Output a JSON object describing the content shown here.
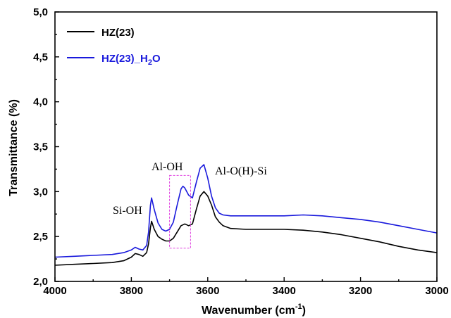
{
  "chart_data": {
    "type": "line",
    "title": "",
    "xlabel": "Wavenumber (cm",
    "xlabel_sup": "-1",
    "xlabel_end": ")",
    "ylabel": "Transmittance (%)",
    "xlim": [
      4000,
      3000
    ],
    "ylim": [
      2.0,
      5.0
    ],
    "x_inverted": true,
    "grid": false,
    "legend_position": "top-left",
    "x_ticks": [
      {
        "value": 4000,
        "label": "4000"
      },
      {
        "value": 3800,
        "label": "3800"
      },
      {
        "value": 3600,
        "label": "3600"
      },
      {
        "value": 3400,
        "label": "3400"
      },
      {
        "value": 3200,
        "label": "3200"
      },
      {
        "value": 3000,
        "label": "3000"
      }
    ],
    "y_ticks": [
      {
        "value": 2.0,
        "label": "2,0"
      },
      {
        "value": 2.5,
        "label": "2,5"
      },
      {
        "value": 3.0,
        "label": "3,0"
      },
      {
        "value": 3.5,
        "label": "3,5"
      },
      {
        "value": 4.0,
        "label": "4,0"
      },
      {
        "value": 4.5,
        "label": "4,5"
      },
      {
        "value": 5.0,
        "label": "5,0"
      }
    ],
    "series": [
      {
        "name": "HZ(23)",
        "color": "#000000",
        "x": [
          4000,
          3950,
          3900,
          3850,
          3820,
          3800,
          3790,
          3780,
          3770,
          3760,
          3755,
          3750,
          3747,
          3740,
          3730,
          3720,
          3710,
          3700,
          3690,
          3680,
          3670,
          3660,
          3650,
          3640,
          3630,
          3620,
          3610,
          3600,
          3590,
          3580,
          3570,
          3560,
          3540,
          3500,
          3450,
          3400,
          3350,
          3300,
          3250,
          3200,
          3150,
          3100,
          3050,
          3000
        ],
        "y": [
          2.18,
          2.19,
          2.2,
          2.21,
          2.23,
          2.27,
          2.31,
          2.3,
          2.28,
          2.32,
          2.42,
          2.6,
          2.67,
          2.58,
          2.5,
          2.47,
          2.45,
          2.45,
          2.48,
          2.55,
          2.62,
          2.64,
          2.62,
          2.64,
          2.8,
          2.95,
          3.0,
          2.95,
          2.85,
          2.72,
          2.66,
          2.62,
          2.59,
          2.58,
          2.58,
          2.58,
          2.57,
          2.55,
          2.52,
          2.48,
          2.44,
          2.39,
          2.35,
          2.32
        ]
      },
      {
        "name": "HZ(23)_H2O",
        "name_main": "HZ(23)_H",
        "name_sub": "2",
        "name_end": "O",
        "color": "#1a1adc",
        "x": [
          4000,
          3950,
          3900,
          3850,
          3820,
          3800,
          3790,
          3780,
          3770,
          3760,
          3755,
          3750,
          3747,
          3740,
          3730,
          3720,
          3710,
          3700,
          3690,
          3680,
          3670,
          3665,
          3660,
          3650,
          3640,
          3630,
          3620,
          3610,
          3600,
          3590,
          3580,
          3570,
          3560,
          3540,
          3500,
          3450,
          3400,
          3350,
          3300,
          3250,
          3200,
          3150,
          3100,
          3050,
          3000
        ],
        "y": [
          2.27,
          2.28,
          2.29,
          2.3,
          2.32,
          2.35,
          2.38,
          2.36,
          2.35,
          2.4,
          2.55,
          2.85,
          2.93,
          2.8,
          2.65,
          2.58,
          2.56,
          2.58,
          2.66,
          2.85,
          3.03,
          3.06,
          3.04,
          2.96,
          2.93,
          3.1,
          3.26,
          3.3,
          3.15,
          2.95,
          2.82,
          2.76,
          2.74,
          2.73,
          2.73,
          2.73,
          2.73,
          2.74,
          2.73,
          2.71,
          2.69,
          2.66,
          2.62,
          2.58,
          2.54
        ]
      }
    ],
    "annotations": {
      "si_oh": "Si-OH",
      "al_oh": "Al-OH",
      "al_o_h_si": "Al-O(H)-Si"
    },
    "highlight_box": {
      "x_range": [
        3700,
        3645
      ],
      "y_range": [
        2.37,
        3.18
      ],
      "color": "#e040e0"
    }
  }
}
